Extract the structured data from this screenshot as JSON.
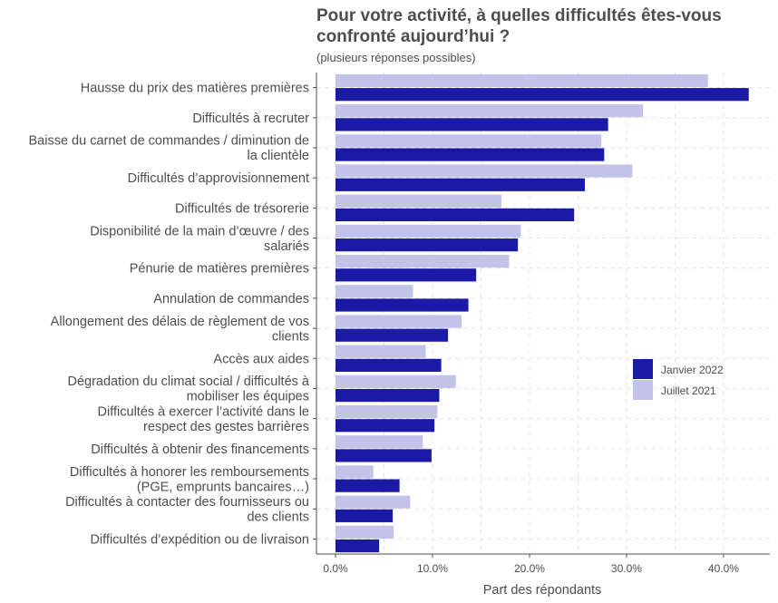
{
  "chart_data": {
    "type": "bar",
    "orientation": "horizontal",
    "title": "Pour votre activité, à quelles difficultés êtes-vous confronté aujourd’hui ?",
    "subtitle": "(plusieurs réponses possibles)",
    "xlabel": "Part des répondants",
    "ylabel": "",
    "xlim": [
      0,
      0.44
    ],
    "x_ticks": [
      "0.0%",
      "10.0%",
      "20.0%",
      "30.0%",
      "40.0%"
    ],
    "grid": true,
    "legend_position": "right",
    "categories": [
      [
        "Hausse du prix des matières premières"
      ],
      [
        "Difficultés à recruter"
      ],
      [
        "Baisse du carnet de commandes / diminution de",
        "la clientèle"
      ],
      [
        "Difficultés d’approvisionnement"
      ],
      [
        "Difficultés de trésorerie"
      ],
      [
        "Disponibilité de la main d’œuvre / des",
        "salariés"
      ],
      [
        "Pénurie de matières premières"
      ],
      [
        "Annulation de commandes"
      ],
      [
        "Allongement des délais de règlement de vos",
        "clients"
      ],
      [
        "Accès aux aides"
      ],
      [
        "Dégradation du climat social / difficultés à",
        "mobiliser les équipes"
      ],
      [
        "Difficultés à exercer l’activité dans le",
        "respect des gestes barrières"
      ],
      [
        "Difficultés à obtenir des financements"
      ],
      [
        "Difficultés à honorer les remboursements",
        "(PGE, emprunts bancaires…)"
      ],
      [
        "Difficultés à contacter des fournisseurs ou",
        "des clients"
      ],
      [
        "Difficultés d’expédition ou de livraison"
      ]
    ],
    "series": [
      {
        "name": "Janvier 2022",
        "color": "#1a1aa6",
        "values": [
          0.426,
          0.281,
          0.277,
          0.257,
          0.246,
          0.188,
          0.145,
          0.137,
          0.116,
          0.109,
          0.107,
          0.102,
          0.099,
          0.066,
          0.059,
          0.045
        ]
      },
      {
        "name": "Juillet 2021",
        "color": "#c2c3e8",
        "values": [
          0.384,
          0.317,
          0.274,
          0.306,
          0.171,
          0.191,
          0.179,
          0.08,
          0.13,
          0.093,
          0.124,
          0.105,
          0.09,
          0.039,
          0.077,
          0.06
        ]
      }
    ]
  }
}
